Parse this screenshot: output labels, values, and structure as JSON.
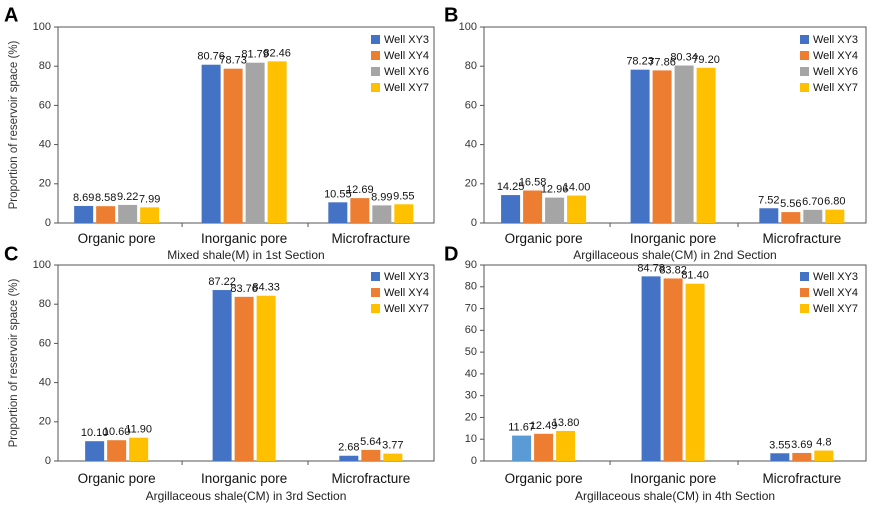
{
  "chart_data": [
    {
      "panel": "A",
      "type": "bar",
      "categories": [
        "Organic pore",
        "Inorganic pore",
        "Microfracture"
      ],
      "series": [
        {
          "name": "Well XY3",
          "color": "#4472C4",
          "values": [
            8.69,
            80.76,
            10.55
          ],
          "labels": [
            "8.69",
            "80.76",
            "10.55"
          ]
        },
        {
          "name": "Well XY4",
          "color": "#ED7D31",
          "values": [
            8.58,
            78.73,
            12.69
          ],
          "labels": [
            "8.58",
            "78.73",
            "12.69"
          ]
        },
        {
          "name": "Well XY6",
          "color": "#A5A5A5",
          "values": [
            9.22,
            81.79,
            8.99
          ],
          "labels": [
            "9.22",
            "81.79",
            "8.99"
          ]
        },
        {
          "name": "Well XY7",
          "color": "#FFC000",
          "values": [
            7.99,
            82.46,
            9.55
          ],
          "labels": [
            "7.99",
            "82.46",
            "9.55"
          ]
        }
      ],
      "xlabel": "Mixed shale(M) in 1st Section",
      "ylabel": "Proportion of reservoir space (%)",
      "ylim": [
        0,
        100
      ],
      "yticks": [
        "0",
        "20",
        "40",
        "60",
        "80",
        "100"
      ],
      "legend": "top-right"
    },
    {
      "panel": "B",
      "type": "bar",
      "categories": [
        "Organic pore",
        "Inorganic pore",
        "Microfracture"
      ],
      "series": [
        {
          "name": "Well XY3",
          "color": "#4472C4",
          "values": [
            14.25,
            78.23,
            7.52
          ],
          "labels": [
            "14.25",
            "78.23",
            "7.52"
          ]
        },
        {
          "name": "Well XY4",
          "color": "#ED7D31",
          "values": [
            16.58,
            77.86,
            5.56
          ],
          "labels": [
            "16.58",
            "77.86",
            "5.56"
          ]
        },
        {
          "name": "Well XY6",
          "color": "#A5A5A5",
          "values": [
            12.96,
            80.34,
            6.7
          ],
          "labels": [
            "12.96",
            "80.34",
            "6.70"
          ]
        },
        {
          "name": "Well XY7",
          "color": "#FFC000",
          "values": [
            14.0,
            79.2,
            6.8
          ],
          "labels": [
            "14.00",
            "79.20",
            "6.80"
          ]
        }
      ],
      "xlabel": "Argillaceous shale(CM) in 2nd Section",
      "ylabel": "",
      "ylim": [
        0,
        100
      ],
      "yticks": [
        "0",
        "20",
        "40",
        "60",
        "80",
        "100"
      ],
      "legend": "top-right"
    },
    {
      "panel": "C",
      "type": "bar",
      "categories": [
        "Organic pore",
        "Inorganic pore",
        "Microfracture"
      ],
      "series": [
        {
          "name": "Well XY3",
          "color": "#4472C4",
          "values": [
            10.1,
            87.22,
            2.68
          ],
          "labels": [
            "10.10",
            "87.22",
            "2.68"
          ]
        },
        {
          "name": "Well XY4",
          "color": "#ED7D31",
          "values": [
            10.6,
            83.76,
            5.64
          ],
          "labels": [
            "10.60",
            "83.76",
            "5.64"
          ]
        },
        {
          "name": "Well XY7",
          "color": "#FFC000",
          "values": [
            11.9,
            84.33,
            3.77
          ],
          "labels": [
            "11.90",
            "84.33",
            "3.77"
          ]
        }
      ],
      "xlabel": "Argillaceous shale(CM) in 3rd Section",
      "ylabel": "Proportion of reservoir space (%)",
      "ylim": [
        0,
        100
      ],
      "yticks": [
        "0",
        "20",
        "40",
        "60",
        "80",
        "100"
      ],
      "legend": "top-right"
    },
    {
      "panel": "D",
      "type": "bar",
      "categories": [
        "Organic pore",
        "Inorganic pore",
        "Microfracture"
      ],
      "series": [
        {
          "name": "Well XY3",
          "color": "#4472C4",
          "values": [
            11.67,
            84.78,
            3.55
          ],
          "labels": [
            "11.67",
            "84.78",
            "3.55"
          ]
        },
        {
          "name": "Well XY4",
          "color": "#ED7D31",
          "values": [
            12.49,
            83.82,
            3.69
          ],
          "labels": [
            "12.49",
            "83.82",
            "3.69"
          ]
        },
        {
          "name": "Well XY7",
          "color": "#FFC000",
          "values": [
            13.8,
            81.4,
            4.8
          ],
          "labels": [
            "13.80",
            "81.40",
            "4.8"
          ]
        }
      ],
      "first_bar_color": "#5B9BD5",
      "xlabel": "Argillaceous shale(CM) in 4th Section",
      "ylabel": "",
      "ylim": [
        0,
        90
      ],
      "yticks": [
        "0",
        "10",
        "20",
        "30",
        "40",
        "50",
        "60",
        "70",
        "80",
        "90"
      ],
      "legend": "top-right"
    }
  ]
}
